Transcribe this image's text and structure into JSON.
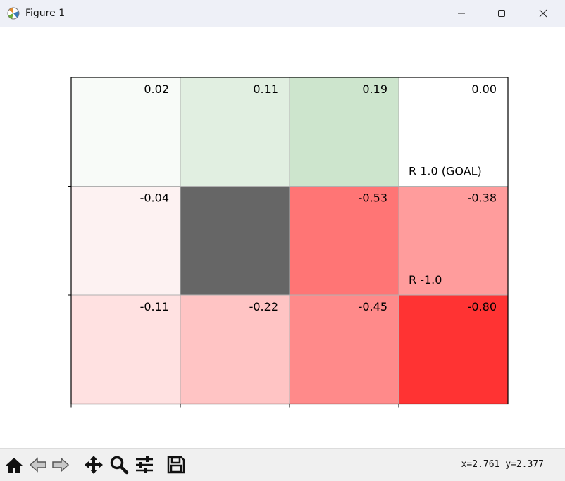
{
  "window": {
    "title": "Figure 1"
  },
  "toolbar": {
    "buttons": [
      {
        "name": "home-button",
        "icon": "home-icon"
      },
      {
        "name": "back-button",
        "icon": "arrow-left-icon"
      },
      {
        "name": "forward-button",
        "icon": "arrow-right-icon"
      },
      {
        "name": "pan-button",
        "icon": "move-icon"
      },
      {
        "name": "zoom-button",
        "icon": "magnifier-icon"
      },
      {
        "name": "configure-subplots-button",
        "icon": "sliders-icon"
      },
      {
        "name": "save-button",
        "icon": "floppy-disk-icon"
      }
    ]
  },
  "status": {
    "coords": "x=2.761 y=2.377"
  },
  "chart_data": {
    "type": "heatmap",
    "rows": 3,
    "cols": 4,
    "cells": [
      {
        "row": 0,
        "col": 0,
        "value": "0.02",
        "color": "#f8fbf8"
      },
      {
        "row": 0,
        "col": 1,
        "value": "0.11",
        "color": "#e1efe1"
      },
      {
        "row": 0,
        "col": 2,
        "value": "0.19",
        "color": "#cde5cd"
      },
      {
        "row": 0,
        "col": 3,
        "value": "0.00",
        "color": "#ffffff",
        "note": "R 1.0 (GOAL)"
      },
      {
        "row": 1,
        "col": 0,
        "value": "-0.04",
        "color": "#fdf2f2"
      },
      {
        "row": 1,
        "col": 1,
        "value": "",
        "color": "#666666",
        "wall": true
      },
      {
        "row": 1,
        "col": 2,
        "value": "-0.53",
        "color": "#ff7575"
      },
      {
        "row": 1,
        "col": 3,
        "value": "-0.38",
        "color": "#ff9c9c",
        "note": "R -1.0"
      },
      {
        "row": 2,
        "col": 0,
        "value": "-0.11",
        "color": "#ffe1e1"
      },
      {
        "row": 2,
        "col": 1,
        "value": "-0.22",
        "color": "#ffc4c4"
      },
      {
        "row": 2,
        "col": 2,
        "value": "-0.45",
        "color": "#ff8a8a"
      },
      {
        "row": 2,
        "col": 3,
        "value": "-0.80",
        "color": "#ff3333"
      }
    ],
    "grid": true,
    "xticks": 4,
    "yticks": 3
  }
}
